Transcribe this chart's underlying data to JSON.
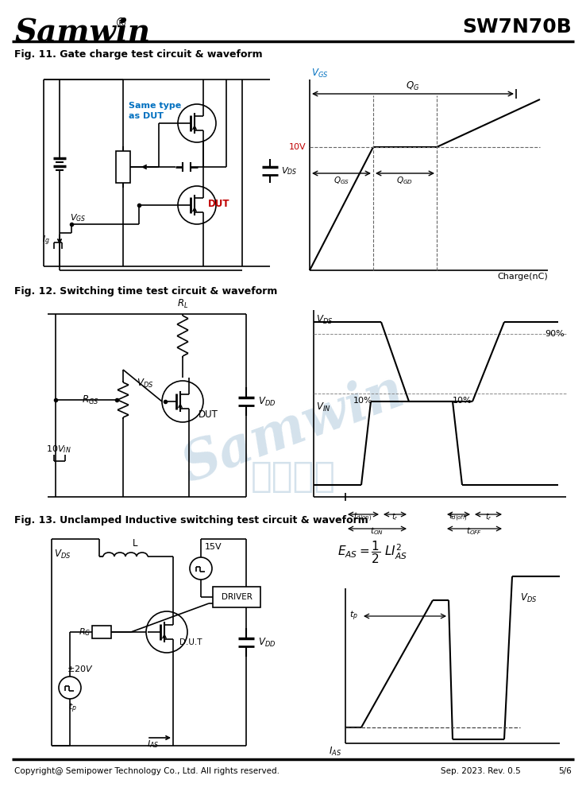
{
  "title_logo": "Samwin",
  "title_part": "SW7N70B",
  "fig11_title": "Fig. 11. Gate charge test circuit & waveform",
  "fig12_title": "Fig. 12. Switching time test circuit & waveform",
  "fig13_title": "Fig. 13. Unclamped Inductive switching test circuit & waveform",
  "footer_left": "Copyright@ Semipower Technology Co., Ltd. All rights reserved.",
  "footer_mid": "Sep. 2023. Rev. 0.5",
  "footer_right": "5/6",
  "bg_color": "#ffffff",
  "blue_color": "#0070c0",
  "red_color": "#c00000",
  "watermark_color": "#b8cfe0"
}
